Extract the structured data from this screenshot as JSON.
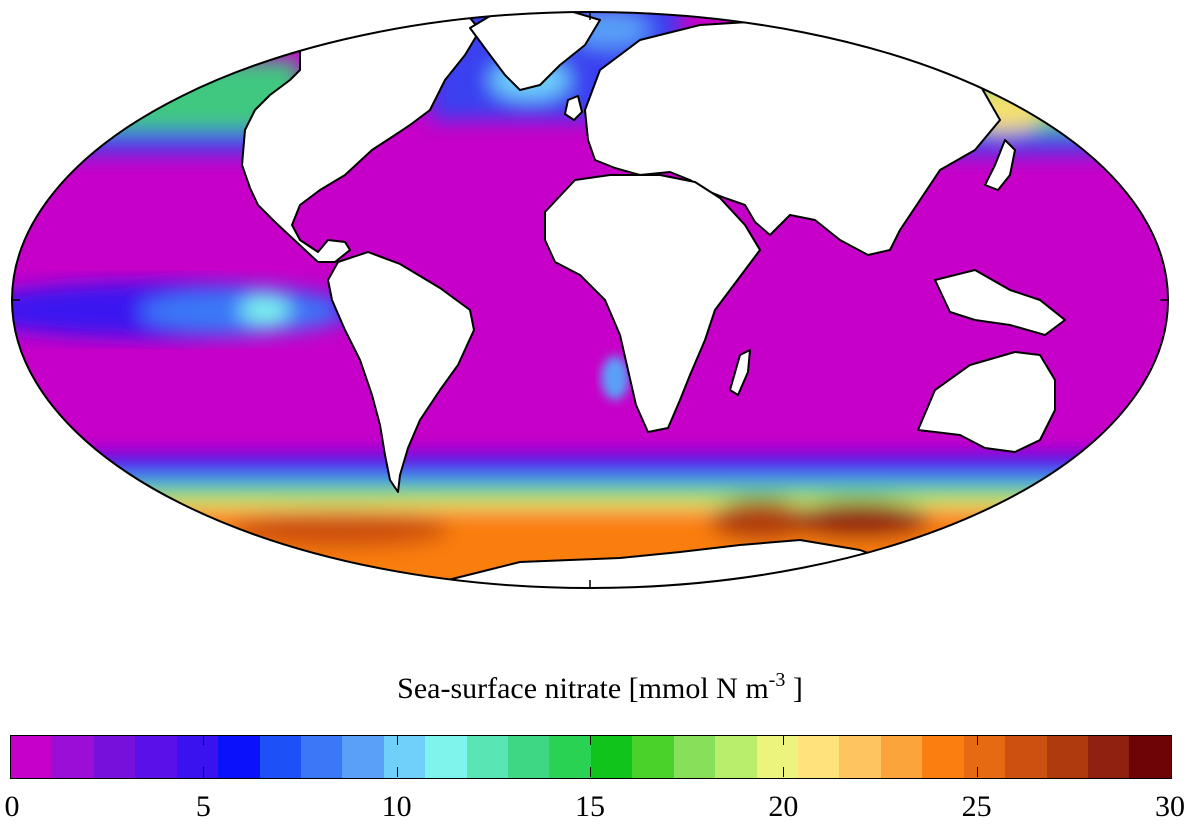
{
  "map": {
    "projection": "Mollweide",
    "field": "Sea-surface nitrate",
    "background": "#c600c8",
    "land_color": "#ffffff",
    "coastline_color": "#000000"
  },
  "legend": {
    "title_main": "Sea-surface nitrate [mmol N m",
    "title_sup": "-3",
    "title_close": "]",
    "min": 0,
    "max": 30,
    "step": 1.25,
    "tick_labels": [
      "0",
      "5",
      "10",
      "15",
      "20",
      "25",
      "30"
    ],
    "colors": [
      "#c600c8",
      "#9a0ed6",
      "#7810dc",
      "#5a10e8",
      "#3a12f0",
      "#0a12fc",
      "#1e50f8",
      "#3a78f8",
      "#5aa0f8",
      "#70d0fa",
      "#7ef4ec",
      "#5ae6b4",
      "#3ed884",
      "#2ad254",
      "#10c41c",
      "#4ad22a",
      "#88e05a",
      "#b8ee6c",
      "#ecf47e",
      "#fee27c",
      "#fec460",
      "#fca43c",
      "#fa7e10",
      "#e66a12",
      "#cc5010",
      "#ae3a0e",
      "#902010",
      "#6e0406"
    ]
  }
}
